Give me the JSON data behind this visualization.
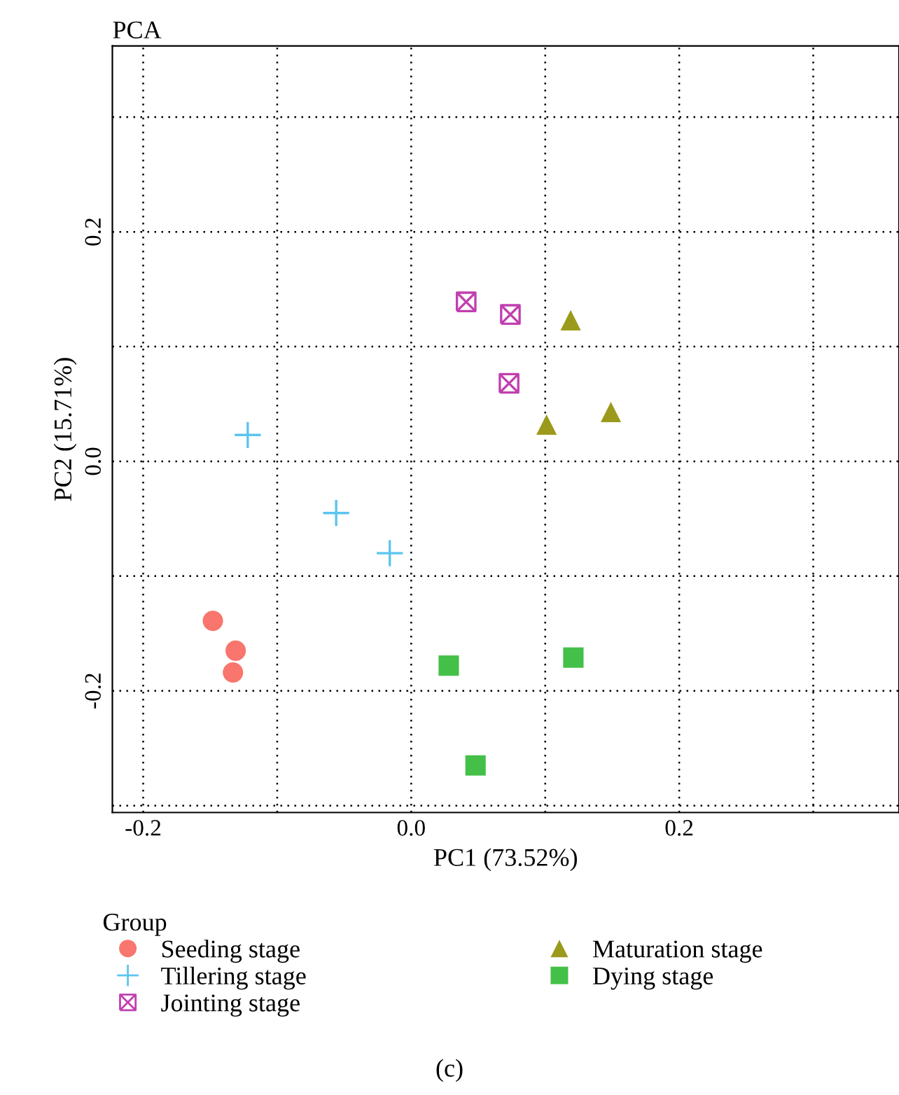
{
  "chart_data": {
    "type": "scatter",
    "title": "PCA",
    "xlabel": "PC1 (73.52%)",
    "ylabel": "PC2 (15.71%)",
    "legend_title": "Group",
    "series": [
      {
        "name": "Seeding stage",
        "color": "#f8766d",
        "marker": "circle",
        "x": [
          -0.133,
          -0.148,
          -0.131
        ],
        "values": [
          -0.184,
          -0.139,
          -0.165
        ]
      },
      {
        "name": "Tillering stage",
        "color": "#5bc4ef",
        "marker": "cross",
        "x": [
          -0.122,
          -0.056,
          -0.016
        ],
        "values": [
          0.023,
          -0.045,
          -0.08
        ]
      },
      {
        "name": "Jointing stage",
        "color": "#c23fb0",
        "x": [
          0.041,
          0.074,
          0.073
        ],
        "values": [
          0.139,
          0.128,
          0.068
        ]
      },
      {
        "name": "Maturation stage",
        "color": "#9c9a1c",
        "marker": "triangle",
        "x": [
          0.119,
          0.101,
          0.149
        ],
        "values": [
          0.123,
          0.032,
          0.043
        ]
      },
      {
        "name": "Dying stage",
        "color": "#44c048",
        "marker": "square",
        "x": [
          0.028,
          0.121,
          0.048
        ],
        "values": [
          -0.178,
          -0.171,
          -0.265
        ]
      }
    ],
    "xlim": [
      -0.223,
      0.364
    ],
    "ylim": [
      -0.306,
      0.362
    ],
    "xticks": [
      -0.2,
      {
        "value": -0.1,
        "label": null
      },
      {
        "value": 0.0,
        "label": "0.0"
      },
      {
        "value": 0.1,
        "label": null
      },
      0.2,
      {
        "value": 0.3,
        "label": null
      }
    ],
    "yticks": [
      {
        "value": -0.3,
        "label": null
      },
      -0.2,
      {
        "value": -0.1,
        "label": null
      },
      {
        "value": 0.0,
        "label": "0.0"
      },
      {
        "value": 0.1,
        "label": null
      },
      0.2,
      {
        "value": 0.3,
        "label": null
      }
    ],
    "grid": true,
    "legend": "bottom",
    "annotations": [
      "(c)"
    ]
  }
}
